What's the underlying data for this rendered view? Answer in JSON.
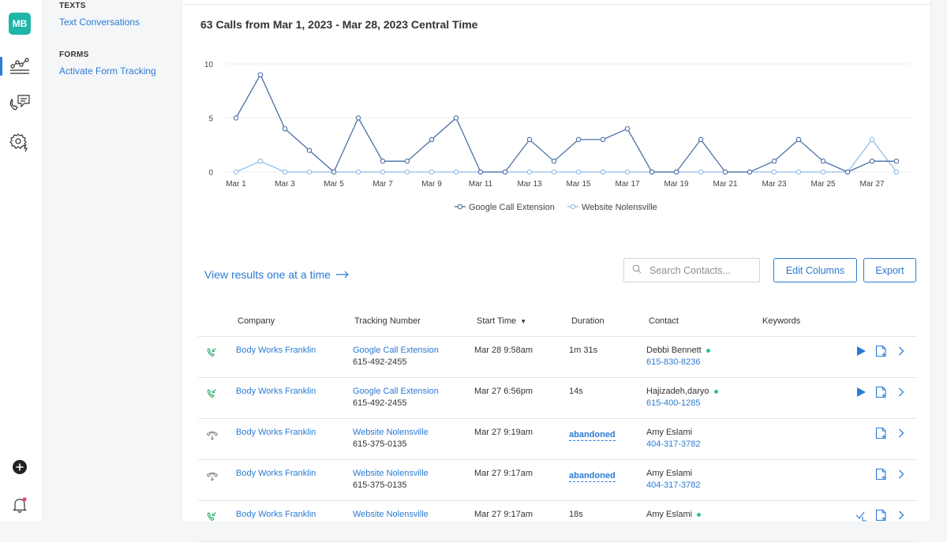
{
  "user": {
    "initials": "MB"
  },
  "subnav": {
    "texts_header": "TEXTS",
    "text_conversations": "Text Conversations",
    "forms_header": "FORMS",
    "activate_form_tracking": "Activate Form Tracking"
  },
  "chart_title": "63 Calls from Mar 1, 2023 - Mar 28, 2023 Central Time",
  "chart_data": {
    "type": "line",
    "x": [
      "Mar 1",
      "Mar 2",
      "Mar 3",
      "Mar 4",
      "Mar 5",
      "Mar 6",
      "Mar 7",
      "Mar 8",
      "Mar 9",
      "Mar 10",
      "Mar 11",
      "Mar 12",
      "Mar 13",
      "Mar 14",
      "Mar 15",
      "Mar 16",
      "Mar 17",
      "Mar 18",
      "Mar 19",
      "Mar 20",
      "Mar 21",
      "Mar 22",
      "Mar 23",
      "Mar 24",
      "Mar 25",
      "Mar 26",
      "Mar 27",
      "Mar 28"
    ],
    "tick_labels": [
      "Mar 1",
      "Mar 3",
      "Mar 5",
      "Mar 7",
      "Mar 9",
      "Mar 11",
      "Mar 13",
      "Mar 15",
      "Mar 17",
      "Mar 19",
      "Mar 21",
      "Mar 23",
      "Mar 25",
      "Mar 27"
    ],
    "ylim": [
      0,
      10
    ],
    "yticks": [
      0,
      5,
      10
    ],
    "grid": true,
    "legend": "bottom",
    "series": [
      {
        "name": "Google Call Extension",
        "color": "#4a6fa5",
        "values": [
          5,
          9,
          4,
          2,
          0,
          5,
          1,
          1,
          3,
          5,
          0,
          0,
          3,
          1,
          3,
          3,
          4,
          0,
          0,
          3,
          0,
          0,
          1,
          3,
          1,
          0,
          1,
          1
        ]
      },
      {
        "name": "Website Nolensville",
        "color": "#8fbde8",
        "values": [
          0,
          1,
          0,
          0,
          0,
          0,
          0,
          0,
          0,
          0,
          0,
          0,
          0,
          0,
          0,
          0,
          0,
          0,
          0,
          0,
          0,
          0,
          0,
          0,
          0,
          0,
          3,
          0
        ]
      }
    ]
  },
  "view_results": "View results one at a time",
  "search": {
    "placeholder": "Search Contacts..."
  },
  "buttons": {
    "edit_columns": "Edit Columns",
    "export": "Export"
  },
  "table": {
    "headers": {
      "company": "Company",
      "tracking": "Tracking Number",
      "start": "Start Time",
      "duration": "Duration",
      "contact": "Contact",
      "keywords": "Keywords"
    },
    "rows": [
      {
        "icon": "answered",
        "company": "Body Works Franklin",
        "source": "Google Call Extension",
        "tracking_number": "615-492-2455",
        "start": "Mar 28 9:58am",
        "duration": "1m 31s",
        "contact_name": "Debbi Bennett",
        "contact_phone": "615-830-8236",
        "online": true,
        "play": true
      },
      {
        "icon": "answered",
        "company": "Body Works Franklin",
        "source": "Google Call Extension",
        "tracking_number": "615-492-2455",
        "start": "Mar 27 6:56pm",
        "duration": "14s",
        "contact_name": "Hajizadeh,daryo",
        "contact_phone": "615-400-1285",
        "online": true,
        "play": true
      },
      {
        "icon": "abandoned",
        "company": "Body Works Franklin",
        "source": "Website Nolensville",
        "tracking_number": "615-375-0135",
        "start": "Mar 27 9:19am",
        "duration": "abandoned",
        "contact_name": "Amy Eslami",
        "contact_phone": "404-317-3782",
        "online": false,
        "play": false
      },
      {
        "icon": "abandoned",
        "company": "Body Works Franklin",
        "source": "Website Nolensville",
        "tracking_number": "615-375-0135",
        "start": "Mar 27 9:17am",
        "duration": "abandoned",
        "contact_name": "Amy Eslami",
        "contact_phone": "404-317-3782",
        "online": false,
        "play": false
      },
      {
        "icon": "answered",
        "company": "Body Works Franklin",
        "source": "Website Nolensville",
        "tracking_number": "",
        "start": "Mar 27 9:17am",
        "duration": "18s",
        "contact_name": "Amy Eslami",
        "contact_phone": "",
        "online": true,
        "play": false
      }
    ]
  }
}
